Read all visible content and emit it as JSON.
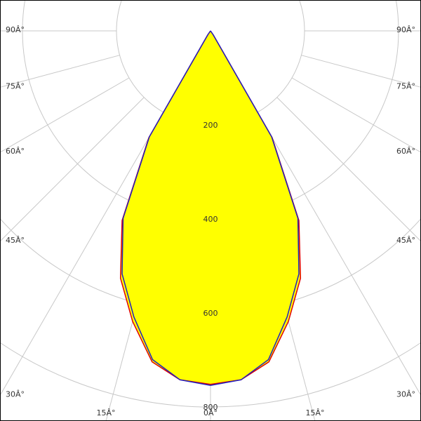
{
  "chart_data": {
    "type": "polar",
    "angles": [
      0,
      5,
      10,
      15,
      20,
      25,
      30,
      35,
      40,
      45,
      50,
      55,
      60,
      65,
      70,
      75,
      80,
      85,
      90
    ],
    "series": [
      {
        "color": "#e00000",
        "values": [
          752,
          745,
          715,
          640,
          560,
          445,
          262,
          10,
          0,
          0,
          0,
          0,
          0,
          0,
          0,
          0,
          0,
          0,
          0
        ]
      },
      {
        "color": "#2020c0",
        "values": [
          754,
          745,
          710,
          630,
          550,
          440,
          260,
          10,
          0,
          0,
          0,
          0,
          0,
          0,
          0,
          0,
          0,
          0,
          0
        ]
      }
    ],
    "fill": "#ffff00",
    "rlim": [
      0,
      800
    ],
    "rticks": [
      200,
      400,
      600,
      800
    ],
    "angle_ticks": [
      {
        "value": 0,
        "label": "0Â°"
      },
      {
        "value": 15,
        "label": "15Â°"
      },
      {
        "value": 30,
        "label": "30Â°"
      },
      {
        "value": 45,
        "label": "45Â°"
      },
      {
        "value": 60,
        "label": "60Â°"
      },
      {
        "value": 75,
        "label": "75Â°"
      },
      {
        "value": 90,
        "label": "90Â°"
      }
    ],
    "grid": true
  }
}
